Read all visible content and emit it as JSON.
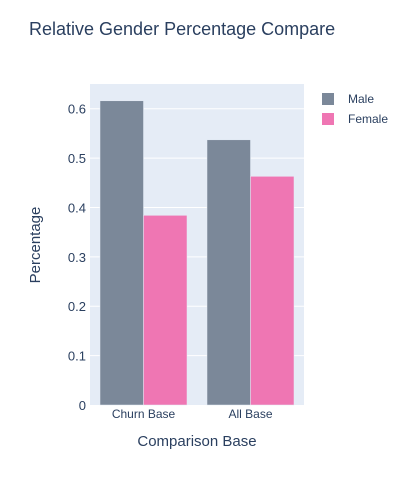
{
  "chart_data": {
    "type": "bar",
    "title": "Relative Gender Percentage Compare",
    "xlabel": "Comparison Base",
    "ylabel": "Percentage",
    "categories": [
      "Churn Base",
      "All Base"
    ],
    "series": [
      {
        "name": "Male",
        "values": [
          0.616,
          0.537
        ],
        "color": "#7b8899"
      },
      {
        "name": "Female",
        "values": [
          0.384,
          0.463
        ],
        "color": "#ef76b3"
      }
    ],
    "ylim": [
      0,
      0.65
    ],
    "yticks": [
      0,
      0.1,
      0.2,
      0.3,
      0.4,
      0.5,
      0.6
    ],
    "ytick_labels": [
      "0",
      "0.1",
      "0.2",
      "0.3",
      "0.4",
      "0.5",
      "0.6"
    ],
    "grid": true,
    "legend_position": "top-right",
    "plot_background": "#e5ecf6"
  }
}
